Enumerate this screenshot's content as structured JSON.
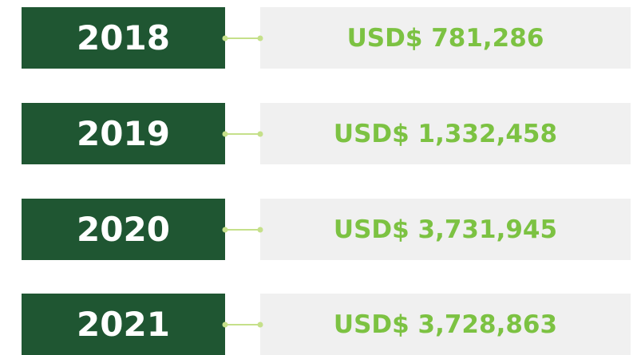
{
  "rows": [
    {
      "year": "2018",
      "amount": "USD$ 781,286"
    },
    {
      "year": "2019",
      "amount": "USD$ 1,332,458"
    },
    {
      "year": "2020",
      "amount": "USD$ 3,731,945"
    },
    {
      "year": "2021",
      "amount": "USD$ 3,728,863"
    }
  ]
}
